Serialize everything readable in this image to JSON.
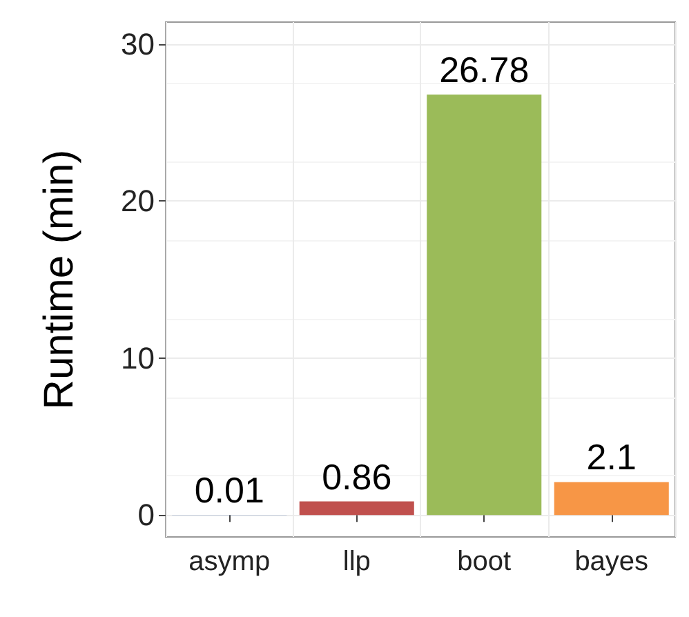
{
  "chart_data": {
    "type": "bar",
    "ylabel": "Runtime (min)",
    "categories": [
      "asymp",
      "llp",
      "boot",
      "bayes"
    ],
    "values": [
      0.01,
      0.86,
      26.78,
      2.1
    ],
    "colors": [
      "#5b7fbf",
      "#c0504d",
      "#9bbb59",
      "#f79646"
    ],
    "ylim": [
      -1.4,
      31.4
    ],
    "yticks": [
      0,
      10,
      20,
      30
    ],
    "grid": true,
    "data_labels": true
  }
}
